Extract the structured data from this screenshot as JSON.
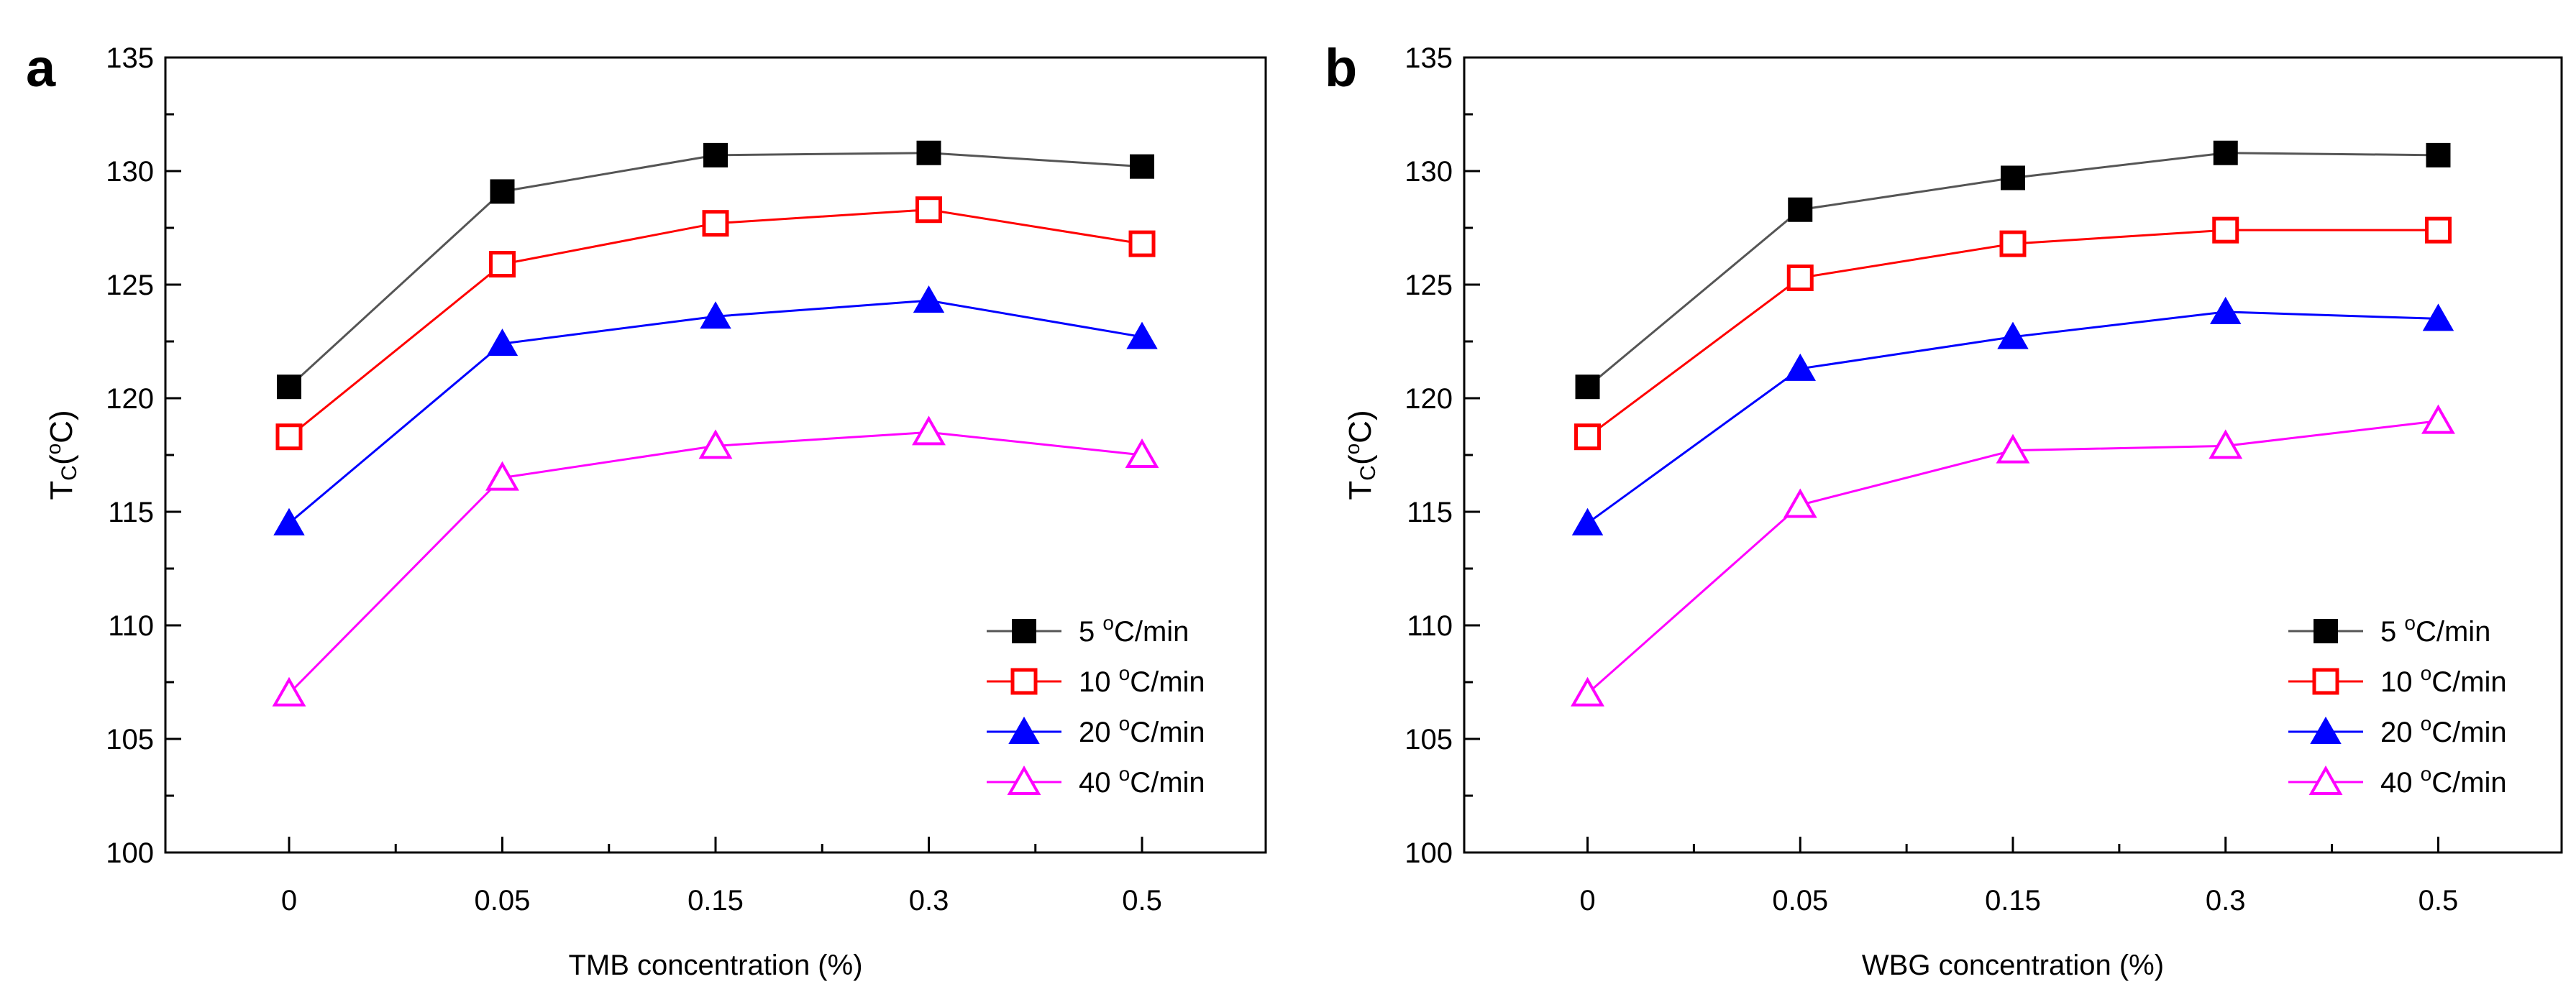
{
  "chart_data": [
    {
      "type": "line",
      "panel_label": "a",
      "title": "",
      "xlabel": "TMB concentration (%)",
      "ylabel_main": "T",
      "ylabel_sub": "C",
      "ylabel_unit_open": "(",
      "ylabel_unit_sup": "o",
      "ylabel_unit_close": "C)",
      "categories": [
        "0",
        "0.05",
        "0.15",
        "0.3",
        "0.5"
      ],
      "ylim": [
        100,
        135
      ],
      "yticks": [
        "100",
        "105",
        "110",
        "115",
        "120",
        "125",
        "130",
        "135"
      ],
      "legend_position": "bottom-right",
      "series": [
        {
          "name": "5 °C/min",
          "legend_num": "5",
          "legend_sup": "o",
          "legend_unit": "C/min",
          "marker": "square-filled",
          "color": "#000000",
          "line_color": "#555555",
          "values": [
            120.5,
            129.1,
            130.7,
            130.8,
            130.2
          ]
        },
        {
          "name": "10 °C/min",
          "legend_num": "10",
          "legend_sup": "o",
          "legend_unit": "C/min",
          "marker": "square-open",
          "color": "#ff0000",
          "line_color": "#ff0000",
          "values": [
            118.3,
            125.9,
            127.7,
            128.3,
            126.8
          ]
        },
        {
          "name": "20 °C/min",
          "legend_num": "20",
          "legend_sup": "o",
          "legend_unit": "C/min",
          "marker": "triangle-filled",
          "color": "#0000ff",
          "line_color": "#0000ff",
          "values": [
            114.5,
            122.4,
            123.6,
            124.3,
            122.7
          ]
        },
        {
          "name": "40 °C/min",
          "legend_num": "40",
          "legend_sup": "o",
          "legend_unit": "C/min",
          "marker": "triangle-open",
          "color": "#ff00ff",
          "line_color": "#ff00ff",
          "values": [
            107.0,
            116.5,
            117.9,
            118.5,
            117.5
          ]
        }
      ]
    },
    {
      "type": "line",
      "panel_label": "b",
      "title": "",
      "xlabel": "WBG concentration (%)",
      "ylabel_main": "T",
      "ylabel_sub": "C",
      "ylabel_unit_open": "(",
      "ylabel_unit_sup": "o",
      "ylabel_unit_close": "C)",
      "categories": [
        "0",
        "0.05",
        "0.15",
        "0.3",
        "0.5"
      ],
      "ylim": [
        100,
        135
      ],
      "yticks": [
        "100",
        "105",
        "110",
        "115",
        "120",
        "125",
        "130",
        "135"
      ],
      "legend_position": "bottom-right",
      "series": [
        {
          "name": "5 °C/min",
          "legend_num": "5",
          "legend_sup": "o",
          "legend_unit": "C/min",
          "marker": "square-filled",
          "color": "#000000",
          "line_color": "#555555",
          "values": [
            120.5,
            128.3,
            129.7,
            130.8,
            130.7
          ]
        },
        {
          "name": "10 °C/min",
          "legend_num": "10",
          "legend_sup": "o",
          "legend_unit": "C/min",
          "marker": "square-open",
          "color": "#ff0000",
          "line_color": "#ff0000",
          "values": [
            118.3,
            125.3,
            126.8,
            127.4,
            127.4
          ]
        },
        {
          "name": "20 °C/min",
          "legend_num": "20",
          "legend_sup": "o",
          "legend_unit": "C/min",
          "marker": "triangle-filled",
          "color": "#0000ff",
          "line_color": "#0000ff",
          "values": [
            114.5,
            121.3,
            122.7,
            123.8,
            123.5
          ]
        },
        {
          "name": "40 °C/min",
          "legend_num": "40",
          "legend_sup": "o",
          "legend_unit": "C/min",
          "marker": "triangle-open",
          "color": "#ff00ff",
          "line_color": "#ff00ff",
          "values": [
            107.0,
            115.3,
            117.7,
            117.9,
            119.0
          ]
        }
      ]
    }
  ]
}
